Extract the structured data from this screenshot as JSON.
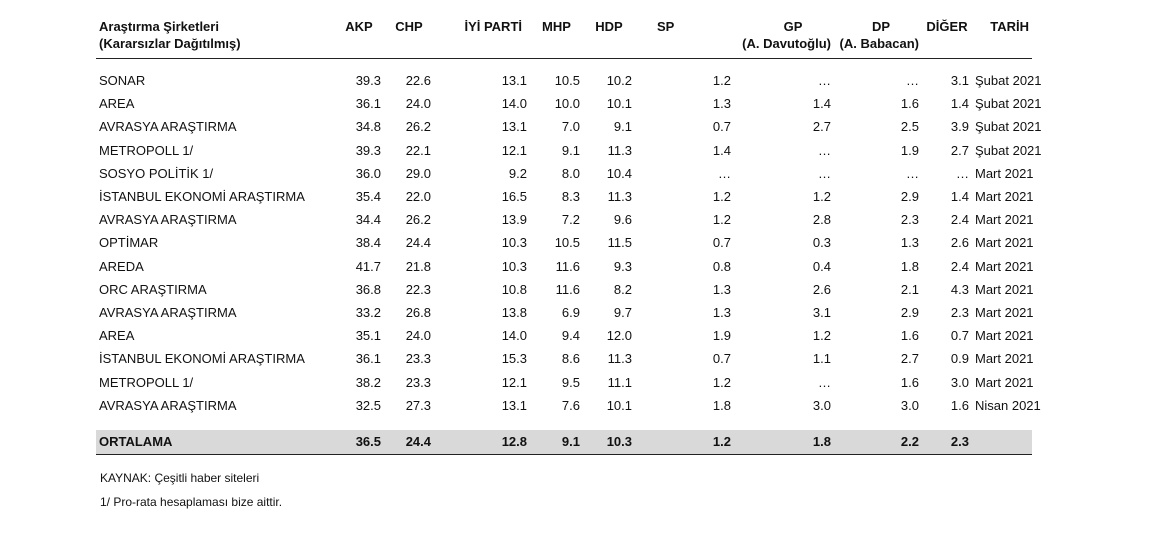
{
  "header": {
    "firm_title_line1": "Araştırma Şirketleri",
    "firm_title_line2": "(Kararsızlar Dağıtılmış)",
    "akp": "AKP",
    "chp": "CHP",
    "iyi": "İYİ PARTİ",
    "mhp": "MHP",
    "hdp": "HDP",
    "sp": "SP",
    "gp_line1": "GP",
    "gp_line2": "(A. Davutoğlu)",
    "dp_line1": "DP",
    "dp_line2": "(A. Babacan)",
    "diger": "DİĞER",
    "tarih": "TARİH"
  },
  "rows": [
    {
      "firm": "SONAR",
      "akp": "39.3",
      "chp": "22.6",
      "iyi": "13.1",
      "mhp": "10.5",
      "hdp": "10.2",
      "sp": "1.2",
      "gp": "…",
      "dp": "…",
      "diger": "3.1",
      "tarih": "Şubat 2021"
    },
    {
      "firm": "AREA",
      "akp": "36.1",
      "chp": "24.0",
      "iyi": "14.0",
      "mhp": "10.0",
      "hdp": "10.1",
      "sp": "1.3",
      "gp": "1.4",
      "dp": "1.6",
      "diger": "1.4",
      "tarih": "Şubat 2021"
    },
    {
      "firm": "AVRASYA ARAŞTIRMA",
      "akp": "34.8",
      "chp": "26.2",
      "iyi": "13.1",
      "mhp": "7.0",
      "hdp": "9.1",
      "sp": "0.7",
      "gp": "2.7",
      "dp": "2.5",
      "diger": "3.9",
      "tarih": "Şubat 2021"
    },
    {
      "firm": "METROPOLL 1/",
      "akp": "39.3",
      "chp": "22.1",
      "iyi": "12.1",
      "mhp": "9.1",
      "hdp": "11.3",
      "sp": "1.4",
      "gp": "…",
      "dp": "1.9",
      "diger": "2.7",
      "tarih": "Şubat 2021"
    },
    {
      "firm": "SOSYO POLİTİK 1/",
      "akp": "36.0",
      "chp": "29.0",
      "iyi": "9.2",
      "mhp": "8.0",
      "hdp": "10.4",
      "sp": "…",
      "gp": "…",
      "dp": "…",
      "diger": "…",
      "tarih": "Mart 2021"
    },
    {
      "firm": "İSTANBUL EKONOMİ ARAŞTIRMA",
      "akp": "35.4",
      "chp": "22.0",
      "iyi": "16.5",
      "mhp": "8.3",
      "hdp": "11.3",
      "sp": "1.2",
      "gp": "1.2",
      "dp": "2.9",
      "diger": "1.4",
      "tarih": "Mart 2021"
    },
    {
      "firm": "AVRASYA ARAŞTIRMA",
      "akp": "34.4",
      "chp": "26.2",
      "iyi": "13.9",
      "mhp": "7.2",
      "hdp": "9.6",
      "sp": "1.2",
      "gp": "2.8",
      "dp": "2.3",
      "diger": "2.4",
      "tarih": "Mart 2021"
    },
    {
      "firm": "OPTİMAR",
      "akp": "38.4",
      "chp": "24.4",
      "iyi": "10.3",
      "mhp": "10.5",
      "hdp": "11.5",
      "sp": "0.7",
      "gp": "0.3",
      "dp": "1.3",
      "diger": "2.6",
      "tarih": "Mart 2021"
    },
    {
      "firm": "AREDA",
      "akp": "41.7",
      "chp": "21.8",
      "iyi": "10.3",
      "mhp": "11.6",
      "hdp": "9.3",
      "sp": "0.8",
      "gp": "0.4",
      "dp": "1.8",
      "diger": "2.4",
      "tarih": "Mart 2021"
    },
    {
      "firm": "ORC ARAŞTIRMA",
      "akp": "36.8",
      "chp": "22.3",
      "iyi": "10.8",
      "mhp": "11.6",
      "hdp": "8.2",
      "sp": "1.3",
      "gp": "2.6",
      "dp": "2.1",
      "diger": "4.3",
      "tarih": "Mart 2021"
    },
    {
      "firm": "AVRASYA ARAŞTIRMA",
      "akp": "33.2",
      "chp": "26.8",
      "iyi": "13.8",
      "mhp": "6.9",
      "hdp": "9.7",
      "sp": "1.3",
      "gp": "3.1",
      "dp": "2.9",
      "diger": "2.3",
      "tarih": "Mart 2021"
    },
    {
      "firm": "AREA",
      "akp": "35.1",
      "chp": "24.0",
      "iyi": "14.0",
      "mhp": "9.4",
      "hdp": "12.0",
      "sp": "1.9",
      "gp": "1.2",
      "dp": "1.6",
      "diger": "0.7",
      "tarih": "Mart 2021"
    },
    {
      "firm": "İSTANBUL EKONOMİ ARAŞTIRMA",
      "akp": "36.1",
      "chp": "23.3",
      "iyi": "15.3",
      "mhp": "8.6",
      "hdp": "11.3",
      "sp": "0.7",
      "gp": "1.1",
      "dp": "2.7",
      "diger": "0.9",
      "tarih": "Mart 2021"
    },
    {
      "firm": "METROPOLL 1/",
      "akp": "38.2",
      "chp": "23.3",
      "iyi": "12.1",
      "mhp": "9.5",
      "hdp": "11.1",
      "sp": "1.2",
      "gp": "…",
      "dp": "1.6",
      "diger": "3.0",
      "tarih": "Mart 2021"
    },
    {
      "firm": "AVRASYA ARAŞTIRMA",
      "akp": "32.5",
      "chp": "27.3",
      "iyi": "13.1",
      "mhp": "7.6",
      "hdp": "10.1",
      "sp": "1.8",
      "gp": "3.0",
      "dp": "3.0",
      "diger": "1.6",
      "tarih": "Nisan 2021"
    }
  ],
  "average": {
    "label": "ORTALAMA",
    "akp": "36.5",
    "chp": "24.4",
    "iyi": "12.8",
    "mhp": "9.1",
    "hdp": "10.3",
    "sp": "1.2",
    "gp": "1.8",
    "dp": "2.2",
    "diger": "2.3"
  },
  "notes": {
    "source": "KAYNAK: Çeşitli haber siteleri",
    "prorata": "1/ Pro-rata hesaplaması bize aittir."
  }
}
